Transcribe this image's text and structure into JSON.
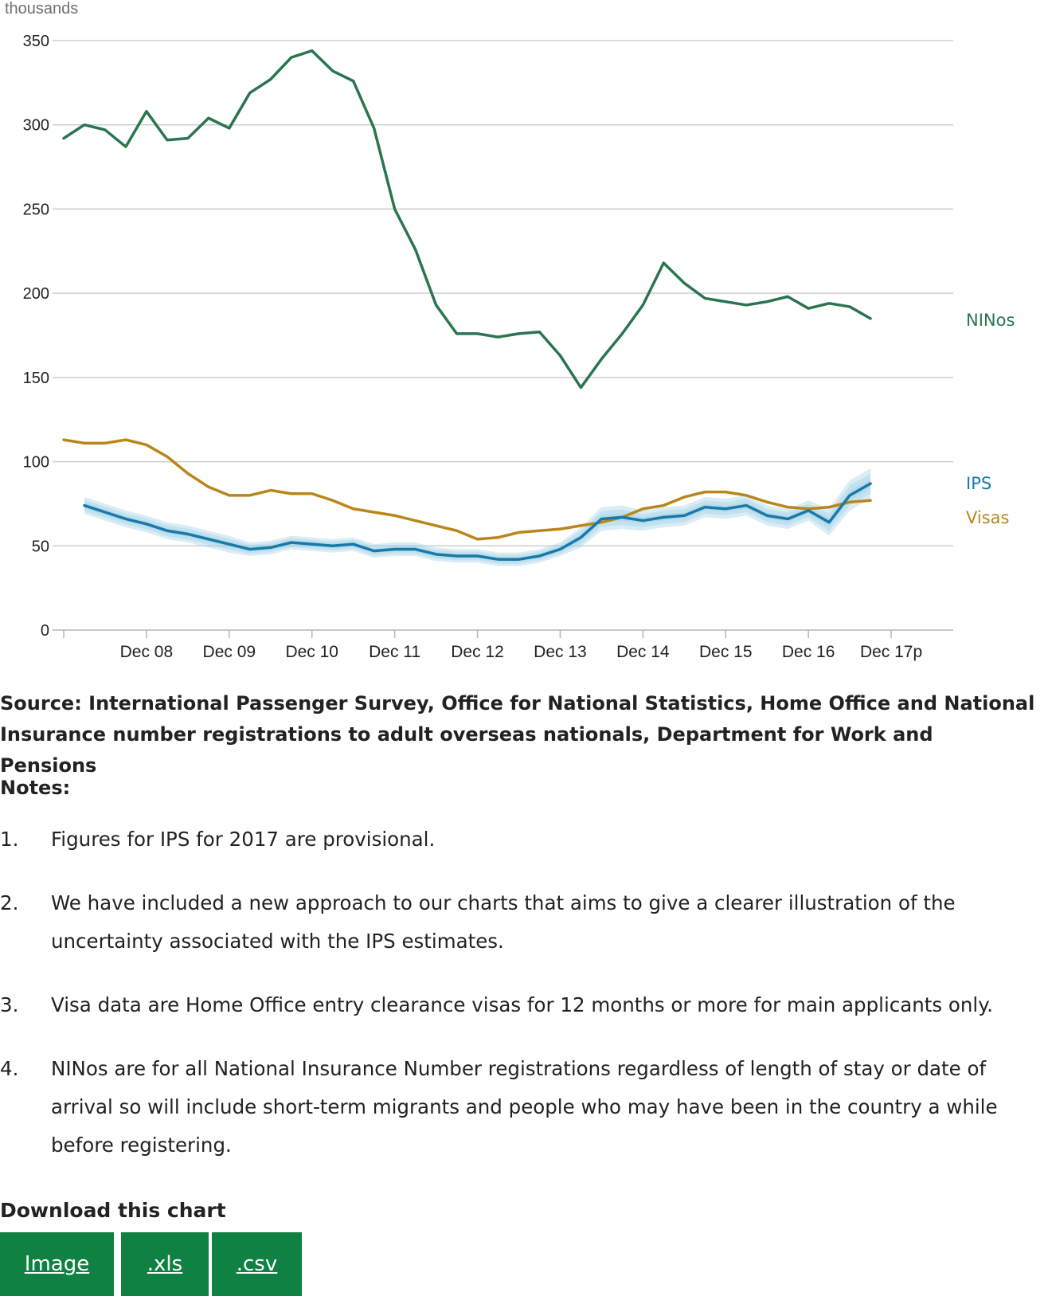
{
  "chart_data": {
    "type": "line",
    "unit_label": "thousands",
    "ylim": [
      0,
      350
    ],
    "yticks": [
      0,
      50,
      100,
      150,
      200,
      250,
      300,
      350
    ],
    "xlim": [
      2007.0,
      2017.75
    ],
    "x_tick_positions": [
      2008.0,
      2009.0,
      2010.0,
      2011.0,
      2012.0,
      2013.0,
      2014.0,
      2015.0,
      2016.0,
      2017.0
    ],
    "x_tick_labels": [
      "Dec 08",
      "Dec 09",
      "Dec 10",
      "Dec 11",
      "Dec 12",
      "Dec 13",
      "Dec 14",
      "Dec 15",
      "Dec 16",
      "Dec 17p"
    ],
    "grid": true,
    "legend": "inline labels at right end of each series",
    "series": [
      {
        "name": "NINos",
        "color": "#2a7550",
        "points": [
          [
            2007.0,
            292
          ],
          [
            2007.25,
            300
          ],
          [
            2007.5,
            297
          ],
          [
            2007.75,
            287
          ],
          [
            2008.0,
            308
          ],
          [
            2008.25,
            291
          ],
          [
            2008.5,
            292
          ],
          [
            2008.75,
            304
          ],
          [
            2009.0,
            298
          ],
          [
            2009.25,
            319
          ],
          [
            2009.5,
            327
          ],
          [
            2009.75,
            340
          ],
          [
            2010.0,
            344
          ],
          [
            2010.25,
            332
          ],
          [
            2010.5,
            326
          ],
          [
            2010.75,
            298
          ],
          [
            2011.0,
            250
          ],
          [
            2011.25,
            226
          ],
          [
            2011.5,
            193
          ],
          [
            2011.75,
            176
          ],
          [
            2012.0,
            176
          ],
          [
            2012.25,
            174
          ],
          [
            2012.5,
            176
          ],
          [
            2012.75,
            177
          ],
          [
            2013.0,
            163
          ],
          [
            2013.25,
            144
          ],
          [
            2013.5,
            161
          ],
          [
            2013.75,
            176
          ],
          [
            2014.0,
            193
          ],
          [
            2014.25,
            218
          ],
          [
            2014.5,
            206
          ],
          [
            2014.75,
            197
          ],
          [
            2015.0,
            195
          ],
          [
            2015.25,
            193
          ],
          [
            2015.5,
            195
          ],
          [
            2015.75,
            198
          ],
          [
            2016.0,
            191
          ],
          [
            2016.25,
            194
          ],
          [
            2016.5,
            192
          ],
          [
            2016.75,
            185
          ]
        ]
      },
      {
        "name": "IPS",
        "color": "#1a79a8",
        "band_color": "#9fd0e6",
        "points": [
          [
            2007.25,
            74
          ],
          [
            2007.5,
            70
          ],
          [
            2007.75,
            66
          ],
          [
            2008.0,
            63
          ],
          [
            2008.25,
            59
          ],
          [
            2008.5,
            57
          ],
          [
            2008.75,
            54
          ],
          [
            2009.0,
            51
          ],
          [
            2009.25,
            48
          ],
          [
            2009.5,
            49
          ],
          [
            2009.75,
            52
          ],
          [
            2010.0,
            51
          ],
          [
            2010.25,
            50
          ],
          [
            2010.5,
            51
          ],
          [
            2010.75,
            47
          ],
          [
            2011.0,
            48
          ],
          [
            2011.25,
            48
          ],
          [
            2011.5,
            45
          ],
          [
            2011.75,
            44
          ],
          [
            2012.0,
            44
          ],
          [
            2012.25,
            42
          ],
          [
            2012.5,
            42
          ],
          [
            2012.75,
            44
          ],
          [
            2013.0,
            48
          ],
          [
            2013.25,
            55
          ],
          [
            2013.5,
            66
          ],
          [
            2013.75,
            67
          ],
          [
            2014.0,
            65
          ],
          [
            2014.25,
            67
          ],
          [
            2014.5,
            68
          ],
          [
            2014.75,
            73
          ],
          [
            2015.0,
            72
          ],
          [
            2015.25,
            74
          ],
          [
            2015.5,
            68
          ],
          [
            2015.75,
            66
          ],
          [
            2016.0,
            71
          ],
          [
            2016.25,
            64
          ],
          [
            2016.5,
            80
          ],
          [
            2016.75,
            87
          ]
        ],
        "uncertainty": [
          5,
          5,
          5,
          5,
          5,
          5,
          5,
          5,
          4,
          4,
          4,
          4,
          4,
          4,
          4,
          4,
          4,
          4,
          4,
          4,
          4,
          4,
          4,
          4,
          6,
          7,
          7,
          6,
          6,
          6,
          6,
          6,
          6,
          6,
          6,
          6,
          8,
          9,
          9
        ]
      },
      {
        "name": "Visas",
        "color": "#b8861b",
        "points": [
          [
            2007.0,
            113
          ],
          [
            2007.25,
            111
          ],
          [
            2007.5,
            111
          ],
          [
            2007.75,
            113
          ],
          [
            2008.0,
            110
          ],
          [
            2008.25,
            103
          ],
          [
            2008.5,
            93
          ],
          [
            2008.75,
            85
          ],
          [
            2009.0,
            80
          ],
          [
            2009.25,
            80
          ],
          [
            2009.5,
            83
          ],
          [
            2009.75,
            81
          ],
          [
            2010.0,
            81
          ],
          [
            2010.25,
            77
          ],
          [
            2010.5,
            72
          ],
          [
            2010.75,
            70
          ],
          [
            2011.0,
            68
          ],
          [
            2011.25,
            65
          ],
          [
            2011.5,
            62
          ],
          [
            2011.75,
            59
          ],
          [
            2012.0,
            54
          ],
          [
            2012.25,
            55
          ],
          [
            2012.5,
            58
          ],
          [
            2012.75,
            59
          ],
          [
            2013.0,
            60
          ],
          [
            2013.25,
            62
          ],
          [
            2013.5,
            64
          ],
          [
            2013.75,
            67
          ],
          [
            2014.0,
            72
          ],
          [
            2014.25,
            74
          ],
          [
            2014.5,
            79
          ],
          [
            2014.75,
            82
          ],
          [
            2015.0,
            82
          ],
          [
            2015.25,
            80
          ],
          [
            2015.5,
            76
          ],
          [
            2015.75,
            73
          ],
          [
            2016.0,
            72
          ],
          [
            2016.25,
            73
          ],
          [
            2016.5,
            76
          ],
          [
            2016.75,
            77
          ]
        ]
      }
    ]
  },
  "source": "Source: International Passenger Survey, Office for National Statistics, Home Office and National Insurance number registrations to adult overseas nationals, Department for Work and Pensions",
  "notes": {
    "title": "Notes:",
    "items": [
      {
        "num": "1.",
        "text": "Figures for IPS for 2017 are provisional."
      },
      {
        "num": "2.",
        "text": "We have included a new approach to our charts that aims to give a clearer illustration of the uncertainty associated with the IPS estimates."
      },
      {
        "num": "3.",
        "text": "Visa data are Home Office entry clearance visas for 12 months or more for main applicants only."
      },
      {
        "num": "4.",
        "text": "NINos are for all National Insurance Number registrations regardless of length of stay or date of arrival so will include short-term migrants and people who may have been in the country a while before registering."
      }
    ]
  },
  "download": {
    "title": "Download this chart",
    "buttons": [
      {
        "label": "Image"
      },
      {
        "label": ".xls"
      },
      {
        "label": ".csv"
      }
    ],
    "button_color": "#0f8243"
  }
}
